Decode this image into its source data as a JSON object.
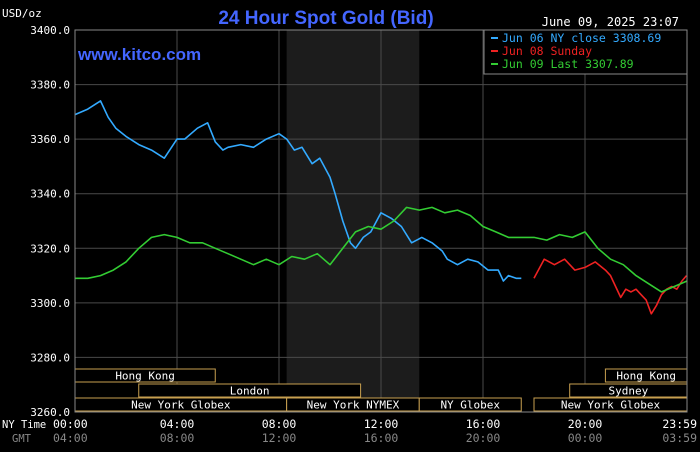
{
  "chart_data": {
    "type": "line",
    "title": "24 Hour Spot Gold (Bid)",
    "ylabel": "USD/oz",
    "timestamp": "June 09, 2025 23:07",
    "watermark": "www.kitco.com",
    "ylim": [
      3260,
      3400
    ],
    "xlim": [
      0,
      24
    ],
    "grid": true,
    "legend_position": "top-right",
    "y_ticks": [
      "3260.0",
      "3280.0",
      "3300.0",
      "3320.0",
      "3340.0",
      "3360.0",
      "3380.0",
      "3400.0"
    ],
    "ny_time_label": "NY Time",
    "gmt_label": "GMT",
    "ny_ticks": [
      "00:00",
      "04:00",
      "08:00",
      "12:00",
      "16:00",
      "20:00",
      "23:59"
    ],
    "gmt_ticks": [
      "04:00",
      "08:00",
      "12:00",
      "16:00",
      "20:00",
      "00:00",
      "03:59"
    ],
    "series": [
      {
        "name": "Jun 06 NY close 3308.69",
        "color": "#33aaff",
        "x": [
          0,
          0.5,
          1,
          1.3,
          1.6,
          2,
          2.5,
          3,
          3.5,
          4,
          4.3,
          4.8,
          5.2,
          5.5,
          5.8,
          6,
          6.5,
          7,
          7.5,
          8,
          8.3,
          8.6,
          8.9,
          9.3,
          9.6,
          10,
          10.2,
          10.5,
          10.8,
          11,
          11.3,
          11.6,
          12,
          12.4,
          12.8,
          13.2,
          13.6,
          14,
          14.4,
          14.6,
          15,
          15.4,
          15.8,
          16.2,
          16.6,
          16.8,
          17,
          17.3,
          17.5
        ],
        "y": [
          3369,
          3371,
          3374,
          3368,
          3364,
          3361,
          3358,
          3356,
          3353,
          3360,
          3360,
          3364,
          3366,
          3359,
          3356,
          3357,
          3358,
          3357,
          3360,
          3362,
          3360,
          3356,
          3357,
          3351,
          3353,
          3346,
          3340,
          3330,
          3322,
          3320,
          3324,
          3326,
          3333,
          3331,
          3328,
          3322,
          3324,
          3322,
          3319,
          3316,
          3314,
          3316,
          3315,
          3312,
          3312,
          3308,
          3310,
          3309,
          3309
        ]
      },
      {
        "name": "Jun 08 Sunday",
        "color": "#ee2222",
        "x": [
          18,
          18.4,
          18.8,
          19.2,
          19.6,
          20,
          20.4,
          20.8,
          21,
          21.2,
          21.4,
          21.6,
          21.8,
          22,
          22.2,
          22.4,
          22.6,
          22.8,
          23,
          23.2,
          23.4,
          23.6,
          23.8,
          23.98
        ],
        "y": [
          3309,
          3316,
          3314,
          3316,
          3312,
          3313,
          3315,
          3312,
          3310,
          3306,
          3302,
          3305,
          3304,
          3305,
          3303,
          3301,
          3296,
          3299,
          3303,
          3305,
          3306,
          3305,
          3308,
          3310
        ]
      },
      {
        "name": "Jun 09 Last 3307.89",
        "color": "#33cc33",
        "x": [
          0,
          0.5,
          1,
          1.5,
          2,
          2.5,
          3,
          3.5,
          4,
          4.5,
          5,
          5.5,
          6,
          6.5,
          7,
          7.5,
          8,
          8.5,
          9,
          9.5,
          10,
          10.5,
          11,
          11.5,
          12,
          12.5,
          13,
          13.5,
          14,
          14.5,
          15,
          15.5,
          16,
          16.5,
          17,
          17.5,
          18,
          18.5,
          19,
          19.5,
          20,
          20.5,
          21,
          21.5,
          22,
          22.5,
          23,
          23.5,
          24
        ],
        "y": [
          3309,
          3309,
          3310,
          3312,
          3315,
          3320,
          3324,
          3325,
          3324,
          3322,
          3322,
          3320,
          3318,
          3316,
          3314,
          3316,
          3314,
          3317,
          3316,
          3318,
          3314,
          3320,
          3326,
          3328,
          3327,
          3330,
          3335,
          3334,
          3335,
          3333,
          3334,
          3332,
          3328,
          3326,
          3324,
          3324,
          3324,
          3323,
          3325,
          3324,
          3326,
          3320,
          3316,
          3314,
          3310,
          3307,
          3304,
          3306,
          3308
        ]
      }
    ],
    "market_sessions": [
      {
        "label": "Hong Kong",
        "start": 0,
        "end": 5.5,
        "row": 0
      },
      {
        "label": "Hong Kong",
        "start": 20.8,
        "end": 24,
        "row": 0
      },
      {
        "label": "London",
        "start": 2.5,
        "end": 11.2,
        "row": 1
      },
      {
        "label": "Sydney",
        "start": 19.4,
        "end": 24,
        "row": 1
      },
      {
        "label": "New York Globex",
        "start": 0,
        "end": 8.3,
        "row": 2
      },
      {
        "label": "New York NYMEX",
        "start": 8.3,
        "end": 13.5,
        "row": 2
      },
      {
        "label": "NY Globex",
        "start": 13.5,
        "end": 17.5,
        "row": 2
      },
      {
        "label": "New York Globex",
        "start": 18,
        "end": 24,
        "row": 2
      }
    ],
    "nymex_shade": [
      8.3,
      13.5
    ]
  }
}
